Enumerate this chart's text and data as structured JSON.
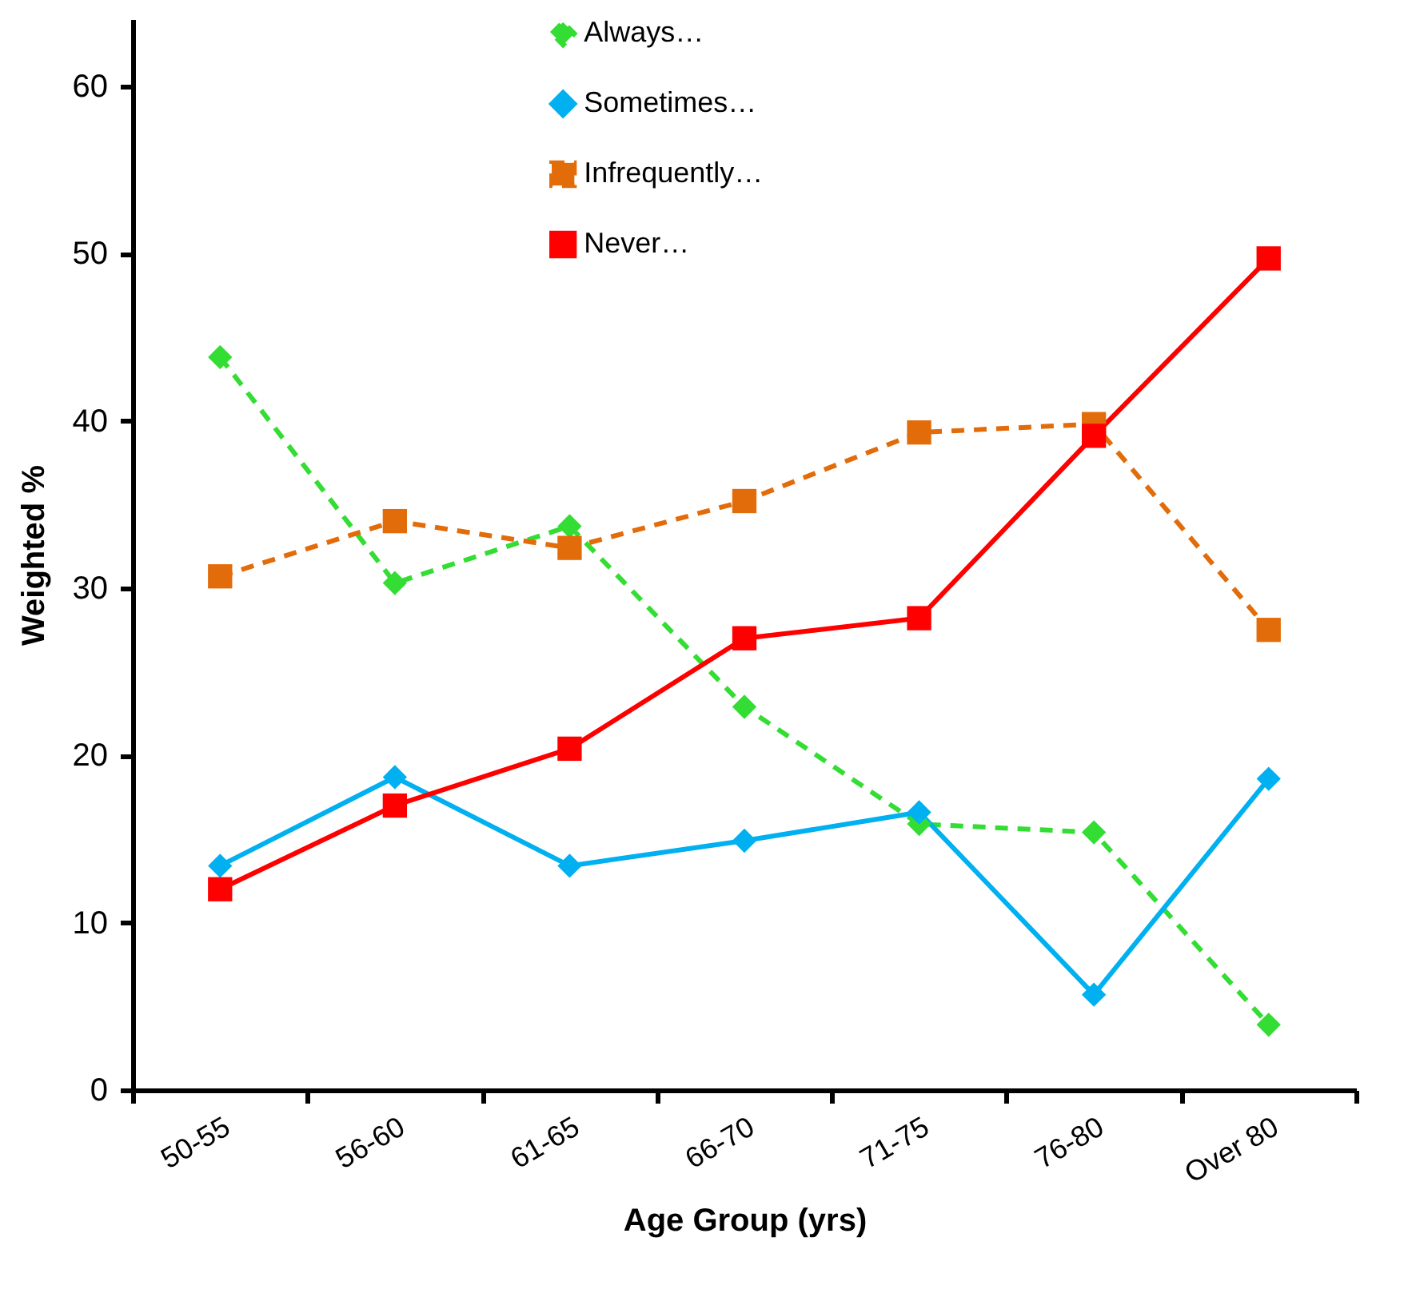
{
  "chart_data": {
    "type": "line",
    "xlabel": "Age Group (yrs)",
    "ylabel": "Weighted %",
    "categories": [
      "50-55",
      "56-60",
      "61-65",
      "66-70",
      "71-75",
      "76-80",
      "Over 80"
    ],
    "series": [
      {
        "name": "Always…",
        "color": "#33dd33",
        "marker": "diamond",
        "line_style": "dashed",
        "values": [
          43.8,
          30.3,
          33.7,
          22.9,
          15.9,
          15.4,
          3.9
        ]
      },
      {
        "name": "Sometimes…",
        "color": "#00b0f0",
        "marker": "diamond",
        "line_style": "solid",
        "values": [
          13.4,
          18.7,
          13.4,
          14.9,
          16.6,
          5.7,
          18.6
        ]
      },
      {
        "name": "Infrequently…",
        "color": "#e36c0a",
        "marker": "square",
        "line_style": "dashed",
        "values": [
          30.7,
          34.0,
          32.4,
          35.2,
          39.3,
          39.8,
          27.5
        ]
      },
      {
        "name": "Never…",
        "color": "#ff0000",
        "marker": "square",
        "line_style": "solid",
        "values": [
          12.0,
          17.0,
          20.4,
          27.0,
          28.2,
          39.1,
          49.7
        ]
      }
    ],
    "ylim": [
      0,
      64
    ],
    "yticks": [
      0,
      10,
      20,
      30,
      40,
      50,
      60
    ],
    "grid": false,
    "legend": "top"
  }
}
